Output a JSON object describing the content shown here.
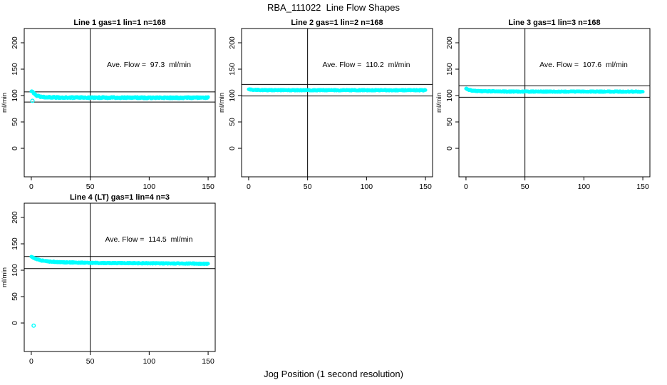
{
  "figure": {
    "main_title": "RBA_111022  Line Flow Shapes",
    "x_axis_caption": "Jog Position (1 second resolution)"
  },
  "colors": {
    "points": "#00FFFF",
    "axis": "#000000",
    "background": "#FFFFFF"
  },
  "chart_data": [
    {
      "type": "scatter",
      "title": "Line 1 gas=1 lin=1 n=168",
      "ylabel": "ml/min",
      "annotation": "Ave. Flow =  97.3  ml/min",
      "ave_flow_ml_min": 97.3,
      "ref_lines": [
        107.0,
        87.6
      ],
      "vline_x": 50,
      "x_ticks": [
        0,
        50,
        100,
        150
      ],
      "y_ticks": [
        0,
        50,
        100,
        150,
        200
      ],
      "xlim": [
        -6,
        156
      ],
      "ylim": [
        -54,
        227
      ],
      "band_profile": [
        [
          0,
          109
        ],
        [
          2,
          105
        ],
        [
          4,
          100.5
        ],
        [
          7,
          98
        ],
        [
          12,
          96.8
        ],
        [
          25,
          96.2
        ],
        [
          50,
          96
        ],
        [
          100,
          95.8
        ],
        [
          150,
          95.8
        ]
      ],
      "band_jitter": 1.4,
      "n_points": 450,
      "outliers": [
        [
          1,
          90
        ]
      ]
    },
    {
      "type": "scatter",
      "title": "Line 2 gas=1 lin=2 n=168",
      "ylabel": "ml/min",
      "annotation": "Ave. Flow =  110.2  ml/min",
      "ave_flow_ml_min": 110.2,
      "ref_lines": [
        121.2,
        99.2
      ],
      "vline_x": 50,
      "x_ticks": [
        0,
        50,
        100,
        150
      ],
      "y_ticks": [
        0,
        50,
        100,
        150,
        200
      ],
      "xlim": [
        -6,
        156
      ],
      "ylim": [
        -54,
        227
      ],
      "band_profile": [
        [
          0,
          112.5
        ],
        [
          2,
          111.2
        ],
        [
          6,
          110.6
        ],
        [
          15,
          110.2
        ],
        [
          50,
          110.1
        ],
        [
          150,
          110
        ]
      ],
      "band_jitter": 0.9,
      "n_points": 450,
      "outliers": []
    },
    {
      "type": "scatter",
      "title": "Line 3 gas=1 lin=3 n=168",
      "ylabel": "ml/min",
      "annotation": "Ave. Flow =  107.6  ml/min",
      "ave_flow_ml_min": 107.6,
      "ref_lines": [
        118.4,
        96.8
      ],
      "vline_x": 50,
      "x_ticks": [
        0,
        50,
        100,
        150
      ],
      "y_ticks": [
        0,
        50,
        100,
        150,
        200
      ],
      "xlim": [
        -6,
        156
      ],
      "ylim": [
        -54,
        227
      ],
      "band_profile": [
        [
          0,
          113.5
        ],
        [
          2,
          111
        ],
        [
          6,
          109
        ],
        [
          12,
          108.2
        ],
        [
          30,
          107.6
        ],
        [
          80,
          107.4
        ],
        [
          150,
          107.4
        ]
      ],
      "band_jitter": 0.9,
      "n_points": 450,
      "outliers": []
    },
    {
      "type": "scatter",
      "title": "Line 4 (LT) gas=1 lin=4 n=3",
      "ylabel": "ml/min",
      "annotation": "Ave. Flow =  114.5  ml/min",
      "ave_flow_ml_min": 114.5,
      "ref_lines": [
        126.0,
        103.1
      ],
      "vline_x": 50,
      "x_ticks": [
        0,
        50,
        100,
        150
      ],
      "y_ticks": [
        0,
        50,
        100,
        150,
        200
      ],
      "xlim": [
        -6,
        156
      ],
      "ylim": [
        -54,
        227
      ],
      "band_profile": [
        [
          0,
          126
        ],
        [
          3,
          122
        ],
        [
          8,
          118.5
        ],
        [
          15,
          116.5
        ],
        [
          30,
          114.8
        ],
        [
          60,
          113.6
        ],
        [
          100,
          113.1
        ],
        [
          150,
          112.3
        ]
      ],
      "band_jitter": 0.9,
      "n_points": 460,
      "outliers": [
        [
          2,
          -5
        ]
      ]
    }
  ]
}
